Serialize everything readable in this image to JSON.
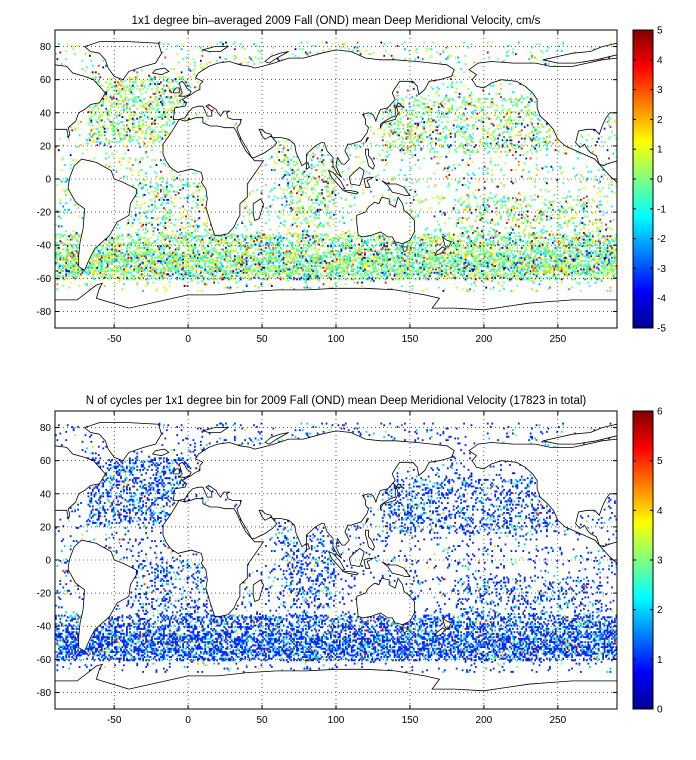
{
  "colormap": "jet",
  "chart_data": [
    {
      "type": "heatmap",
      "title": "1x1 degree bin–averaged 2009 Fall (OND) mean Deep Meridional Velocity, cm/s",
      "xlabel": "",
      "ylabel": "",
      "xlim": [
        -90,
        290
      ],
      "ylim": [
        -90,
        90
      ],
      "x_ticks": [
        -50,
        0,
        50,
        100,
        150,
        200,
        250
      ],
      "y_ticks": [
        80,
        60,
        40,
        20,
        0,
        -20,
        -40,
        -60,
        -80
      ],
      "grid": true,
      "grid_style": "dotted",
      "colorbar": {
        "min": -5,
        "max": 5,
        "ticks": [
          5,
          4,
          3,
          2,
          1,
          0,
          -1,
          -2,
          -3,
          -4,
          -5
        ],
        "placement": "right"
      },
      "values_distribution": "scattered 1x1 degree bins over ocean, dense in Southern Ocean (-35 to -60 lat) and North Atlantic / North Pacific; values span -5 to 5 cm/s, mostly near 0"
    },
    {
      "type": "heatmap",
      "title": "N of cycles per 1x1 degree bin for 2009 Fall (OND) mean Deep Meridional Velocity (17823 in total)",
      "xlabel": "",
      "ylabel": "",
      "xlim": [
        -90,
        290
      ],
      "ylim": [
        -90,
        90
      ],
      "x_ticks": [
        -50,
        0,
        50,
        100,
        150,
        200,
        250
      ],
      "y_ticks": [
        80,
        60,
        40,
        20,
        0,
        -20,
        -40,
        -60,
        -80
      ],
      "grid": true,
      "grid_style": "dotted",
      "colorbar": {
        "min": 0,
        "max": 6,
        "ticks": [
          6,
          5,
          4,
          3,
          2,
          1,
          0
        ],
        "placement": "right"
      },
      "values_distribution": "same bins as panel 1; counts mostly 1 (blue), some 2-3 (cyan/green), few 4-6 (orange/red)"
    }
  ]
}
